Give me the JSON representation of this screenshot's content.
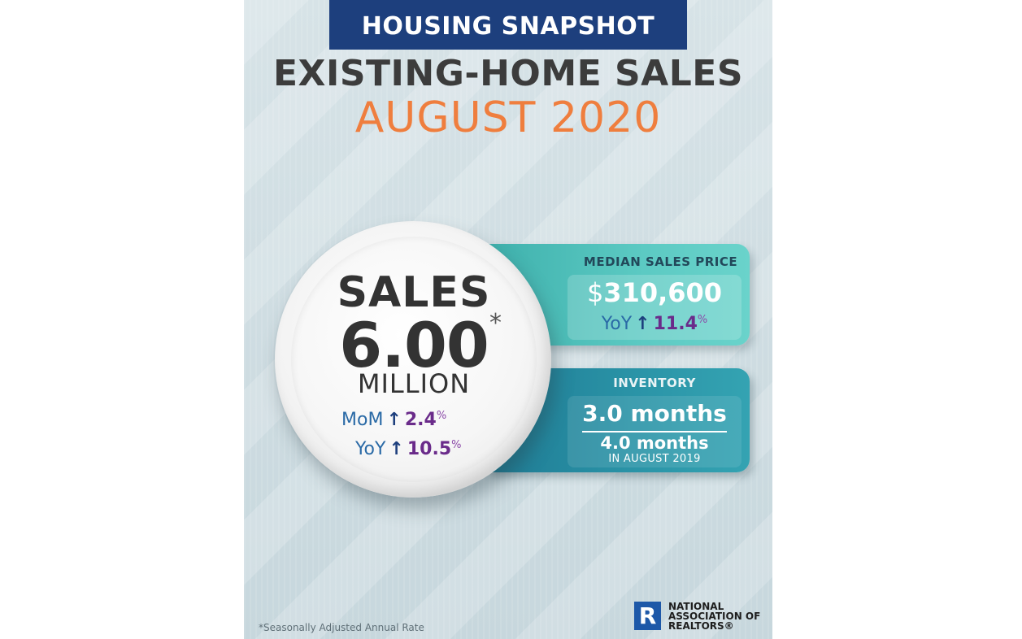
{
  "header": {
    "banner": "HOUSING SNAPSHOT",
    "title": "EXISTING-HOME SALES",
    "period": "AUGUST 2020"
  },
  "sales": {
    "label": "SALES",
    "value": "6.00",
    "asterisk": "*",
    "unit": "MILLION",
    "mom_label": "MoM",
    "mom_value": "2.4",
    "yoy_label": "YoY",
    "yoy_value": "10.5",
    "percent": "%",
    "arrow": "↑"
  },
  "median_price": {
    "title": "MEDIAN SALES PRICE",
    "currency": "$",
    "value": "310,600",
    "yoy_label": "YoY",
    "yoy_value": "11.4",
    "percent": "%",
    "arrow": "↑"
  },
  "inventory": {
    "title": "INVENTORY",
    "current": "3.0 months",
    "prior": "4.0 months",
    "prior_note": "IN AUGUST 2019"
  },
  "footnote": "*Seasonally Adjusted Annual Rate",
  "logo": {
    "mark": "R",
    "line1": "NATIONAL",
    "line2": "ASSOCIATION OF",
    "line3": "REALTORS®"
  },
  "colors": {
    "banner": "#1d3f7d",
    "title": "#3c3c3c",
    "period": "#ef7e3e",
    "teal_panel": "#5ccac3",
    "blue_panel": "#2b95a8",
    "percent_value": "#6a2b8a",
    "comparison_label": "#2a6aa6"
  }
}
